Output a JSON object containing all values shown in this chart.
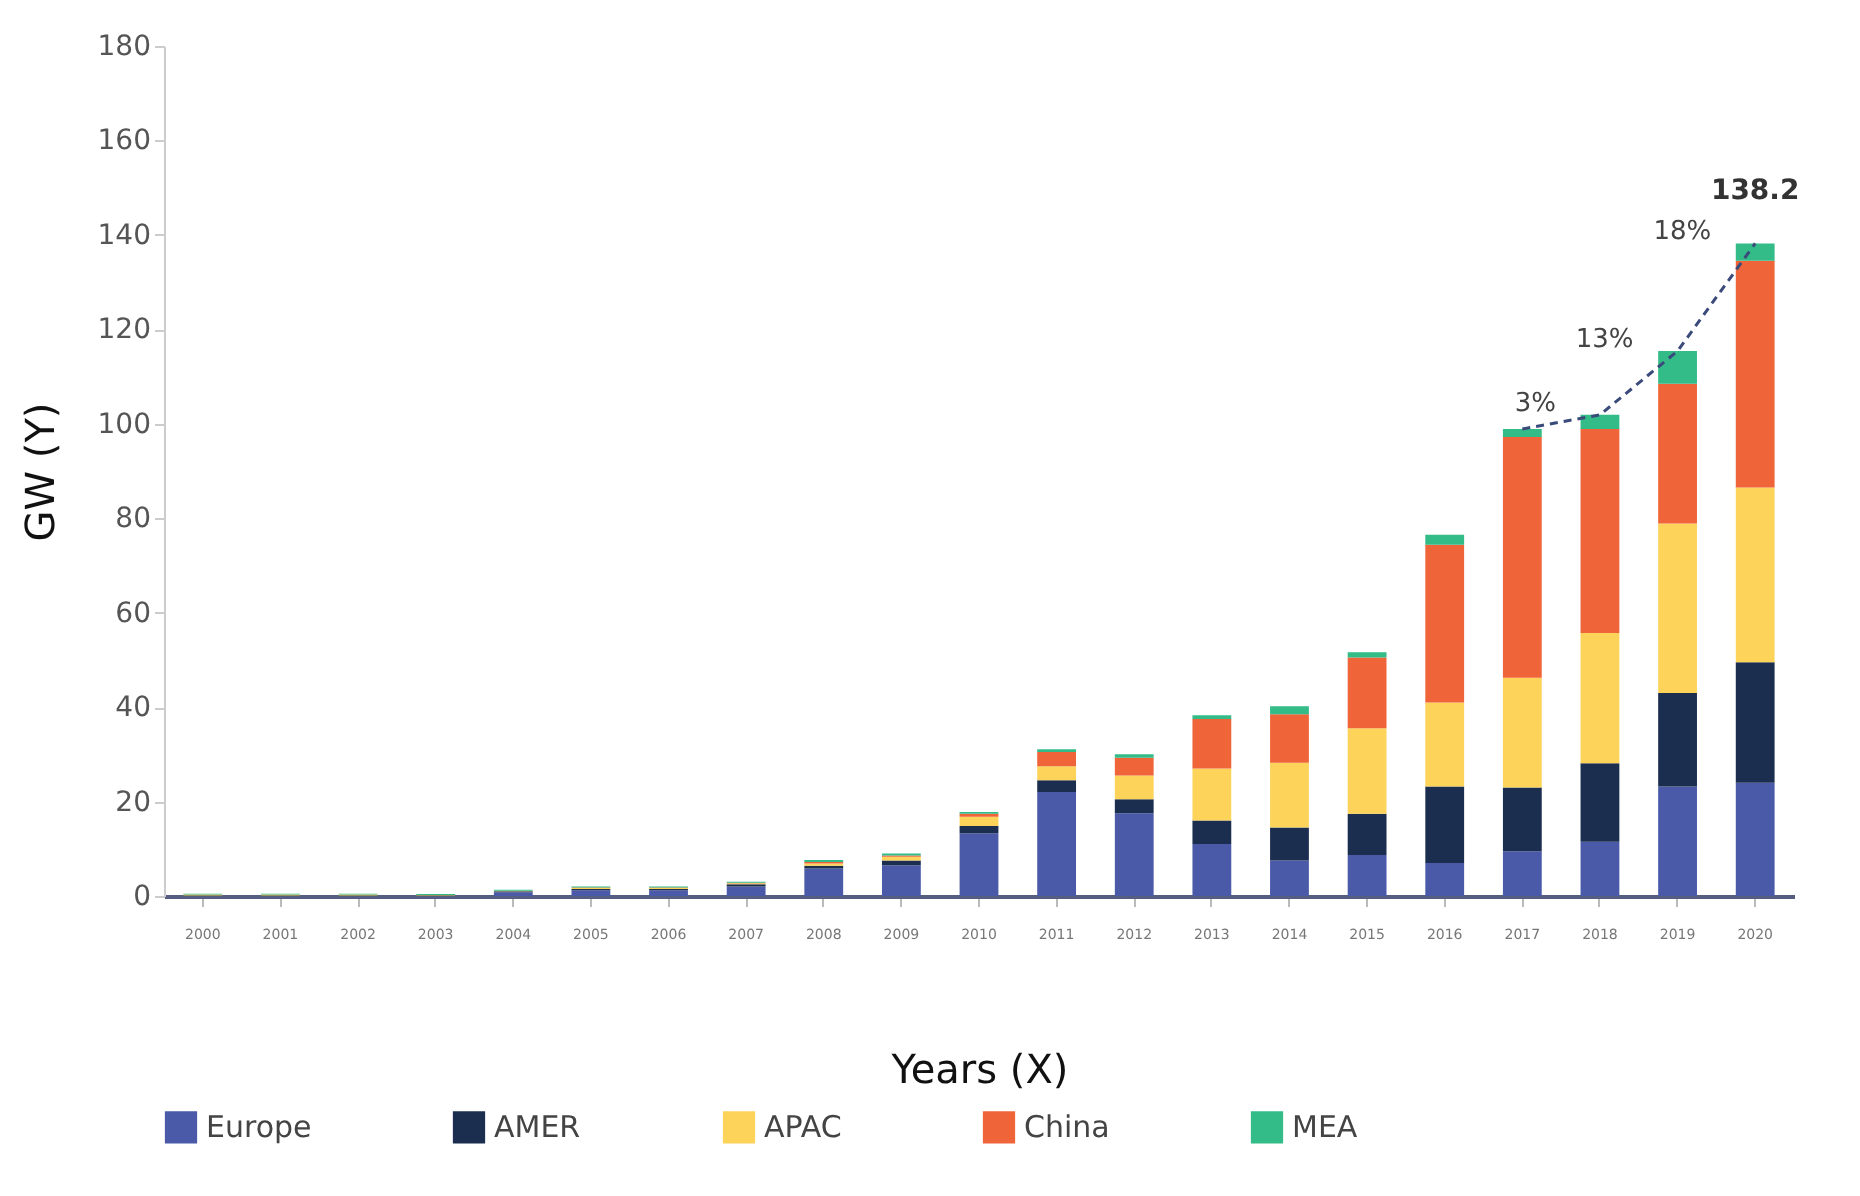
{
  "chart_data": {
    "type": "bar",
    "stacked": true,
    "xlabel": "Years (X)",
    "ylabel": "GW (Y)",
    "ylim": [
      0,
      180
    ],
    "yticks": [
      0,
      20,
      40,
      60,
      80,
      100,
      120,
      140,
      160,
      180
    ],
    "grid": false,
    "legend": "bottom",
    "categories": [
      "2000",
      "2001",
      "2002",
      "2003",
      "2004",
      "2005",
      "2006",
      "2007",
      "2008",
      "2009",
      "2010",
      "2011",
      "2012",
      "2013",
      "2014",
      "2015",
      "2016",
      "2017",
      "2018",
      "2019",
      "2020"
    ],
    "series": [
      {
        "name": "Europe",
        "color": "#4a5aa8",
        "values": [
          null,
          null,
          null,
          null,
          0.8,
          1.2,
          1.2,
          2.0,
          5.8,
          6.5,
          13.3,
          22,
          17.5,
          11,
          7.5,
          8.7,
          7,
          9.5,
          11.5,
          23.2,
          24
        ]
      },
      {
        "name": "AMER",
        "color": "#1c2e50",
        "values": [
          0.1,
          0.1,
          0.1,
          0.1,
          0.2,
          0.3,
          0.3,
          0.5,
          0.6,
          1.0,
          1.5,
          2.5,
          3,
          5,
          7,
          8.7,
          16.2,
          13.5,
          16.6,
          19.8,
          25.5
        ]
      },
      {
        "name": "APAC",
        "color": "#fdd35a",
        "values": [
          0.2,
          0.2,
          0.2,
          0.1,
          0.1,
          0.2,
          0.2,
          0.2,
          0.5,
          0.8,
          2,
          3,
          5,
          11,
          13.7,
          18.1,
          17.8,
          23.2,
          27.6,
          35.9,
          37
        ]
      },
      {
        "name": "China",
        "color": "#f0643a",
        "values": [
          0,
          0,
          0,
          0,
          0,
          0.1,
          0.1,
          0.1,
          0.3,
          0.3,
          0.6,
          3,
          3.8,
          10.5,
          10.3,
          15,
          33.4,
          51,
          43.2,
          29.6,
          48
        ]
      },
      {
        "name": "MEA",
        "color": "#33bb88",
        "values": [
          0.2,
          0.2,
          0.2,
          0.2,
          0.2,
          0.2,
          0.2,
          0.2,
          0.4,
          0.4,
          0.4,
          0.6,
          0.7,
          0.8,
          1.7,
          1.1,
          2.1,
          1.7,
          3.0,
          6.9,
          3.7
        ]
      },
      {
        "type": "line",
        "line_style": "dashed",
        "color": "#3a4a7a",
        "values": [
          null,
          null,
          null,
          null,
          null,
          null,
          null,
          null,
          null,
          null,
          null,
          null,
          null,
          null,
          null,
          null,
          null,
          98.9,
          101.9,
          115.4,
          138.2
        ]
      }
    ],
    "annotations": [
      {
        "text": "3%",
        "x": "2018",
        "y": 101.9
      },
      {
        "text": "13%",
        "x": "2019",
        "y": 115.4
      },
      {
        "text": "18%",
        "x": "2020",
        "y": 138.2
      },
      {
        "text": "138.2",
        "x": "2020",
        "y": 138.2
      }
    ]
  }
}
